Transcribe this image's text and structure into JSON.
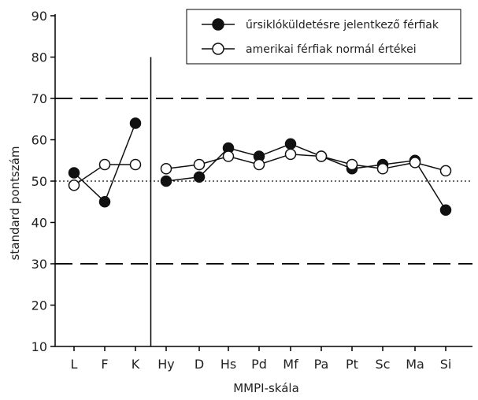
{
  "chart_data": {
    "type": "line",
    "xlabel": "MMPI-skála",
    "ylabel": "standard pontszám",
    "ylim": [
      10,
      90
    ],
    "yticks": [
      10,
      20,
      30,
      40,
      50,
      60,
      70,
      80,
      90
    ],
    "categories": [
      "L",
      "F",
      "K",
      "Hy",
      "D",
      "Hs",
      "Pd",
      "Mf",
      "Pa",
      "Pt",
      "Sc",
      "Ma",
      "Si"
    ],
    "series": [
      {
        "name": "űrsiklóküldetésre jelentkező férfiak",
        "marker": "filled-circle",
        "color": "#111111",
        "values": [
          52,
          45,
          64,
          50,
          51,
          58,
          56,
          59,
          56,
          53,
          54,
          55,
          43
        ]
      },
      {
        "name": "amerikai férfiak normál értékei",
        "marker": "open-circle",
        "color": "#111111",
        "values": [
          49,
          54,
          54,
          53,
          54,
          56,
          54,
          56.5,
          56,
          54,
          53,
          54.5,
          52.5
        ]
      }
    ],
    "reference_lines": [
      {
        "value": 70,
        "style": "dashed"
      },
      {
        "value": 30,
        "style": "dashed"
      },
      {
        "value": 50,
        "style": "dotted"
      }
    ],
    "segment_break_after": "K",
    "legend_position": "top-right",
    "grid": false
  }
}
